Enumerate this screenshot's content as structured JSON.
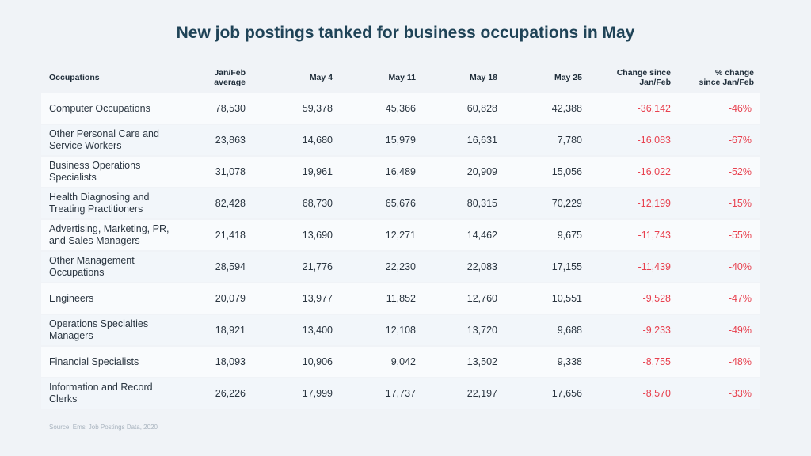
{
  "title": "New job postings tanked for business occupations in May",
  "source": "Source: Emsi Job Postings Data, 2020",
  "headers": {
    "occupation": "Occupations",
    "janfeb_line1": "Jan/Feb",
    "janfeb_line2": "average",
    "may4": "May 4",
    "may11": "May 11",
    "may18": "May 18",
    "may25": "May 25",
    "change_line1": "Change since",
    "change_line2": "Jan/Feb",
    "pct_line1": "% change",
    "pct_line2": "since Jan/Feb"
  },
  "chart_data": {
    "type": "table",
    "title": "New job postings tanked for business occupations in May",
    "columns": [
      "Occupations",
      "Jan/Feb average",
      "May 4",
      "May 11",
      "May 18",
      "May 25",
      "Change since Jan/Feb",
      "% change since Jan/Feb"
    ],
    "rows": [
      {
        "occupation": [
          "Computer Occupations"
        ],
        "janfeb": "78,530",
        "may4": "59,378",
        "may11": "45,366",
        "may18": "60,828",
        "may25": "42,388",
        "change": "-36,142",
        "pct": "-46%"
      },
      {
        "occupation": [
          "Other Personal Care and",
          "Service Workers"
        ],
        "janfeb": "23,863",
        "may4": "14,680",
        "may11": "15,979",
        "may18": "16,631",
        "may25": "7,780",
        "change": "-16,083",
        "pct": "-67%"
      },
      {
        "occupation": [
          "Business Operations",
          "Specialists"
        ],
        "janfeb": "31,078",
        "may4": "19,961",
        "may11": "16,489",
        "may18": "20,909",
        "may25": "15,056",
        "change": "-16,022",
        "pct": "-52%"
      },
      {
        "occupation": [
          "Health Diagnosing and",
          "Treating Practitioners"
        ],
        "janfeb": "82,428",
        "may4": "68,730",
        "may11": "65,676",
        "may18": "80,315",
        "may25": "70,229",
        "change": "-12,199",
        "pct": "-15%"
      },
      {
        "occupation": [
          "Advertising, Marketing, PR,",
          "and Sales Managers"
        ],
        "janfeb": "21,418",
        "may4": "13,690",
        "may11": "12,271",
        "may18": "14,462",
        "may25": "9,675",
        "change": "-11,743",
        "pct": "-55%"
      },
      {
        "occupation": [
          "Other Management",
          "Occupations"
        ],
        "janfeb": "28,594",
        "may4": "21,776",
        "may11": "22,230",
        "may18": "22,083",
        "may25": "17,155",
        "change": "-11,439",
        "pct": "-40%"
      },
      {
        "occupation": [
          "Engineers"
        ],
        "janfeb": "20,079",
        "may4": "13,977",
        "may11": "11,852",
        "may18": "12,760",
        "may25": "10,551",
        "change": "-9,528",
        "pct": "-47%"
      },
      {
        "occupation": [
          "Operations Specialties",
          "Managers"
        ],
        "janfeb": "18,921",
        "may4": "13,400",
        "may11": "12,108",
        "may18": "13,720",
        "may25": "9,688",
        "change": "-9,233",
        "pct": "-49%"
      },
      {
        "occupation": [
          "Financial Specialists"
        ],
        "janfeb": "18,093",
        "may4": "10,906",
        "may11": "9,042",
        "may18": "13,502",
        "may25": "9,338",
        "change": "-8,755",
        "pct": "-48%"
      },
      {
        "occupation": [
          "Information and Record",
          "Clerks"
        ],
        "janfeb": "26,226",
        "may4": "17,999",
        "may11": "17,737",
        "may18": "22,197",
        "may25": "17,656",
        "change": "-8,570",
        "pct": "-33%"
      }
    ]
  },
  "colors": {
    "title": "#1f4357",
    "negative": "#e8414f",
    "text": "#2a3540",
    "background": "#f0f3f7",
    "row_light": "#f9fbfd",
    "row_dark": "#f2f6fa"
  }
}
